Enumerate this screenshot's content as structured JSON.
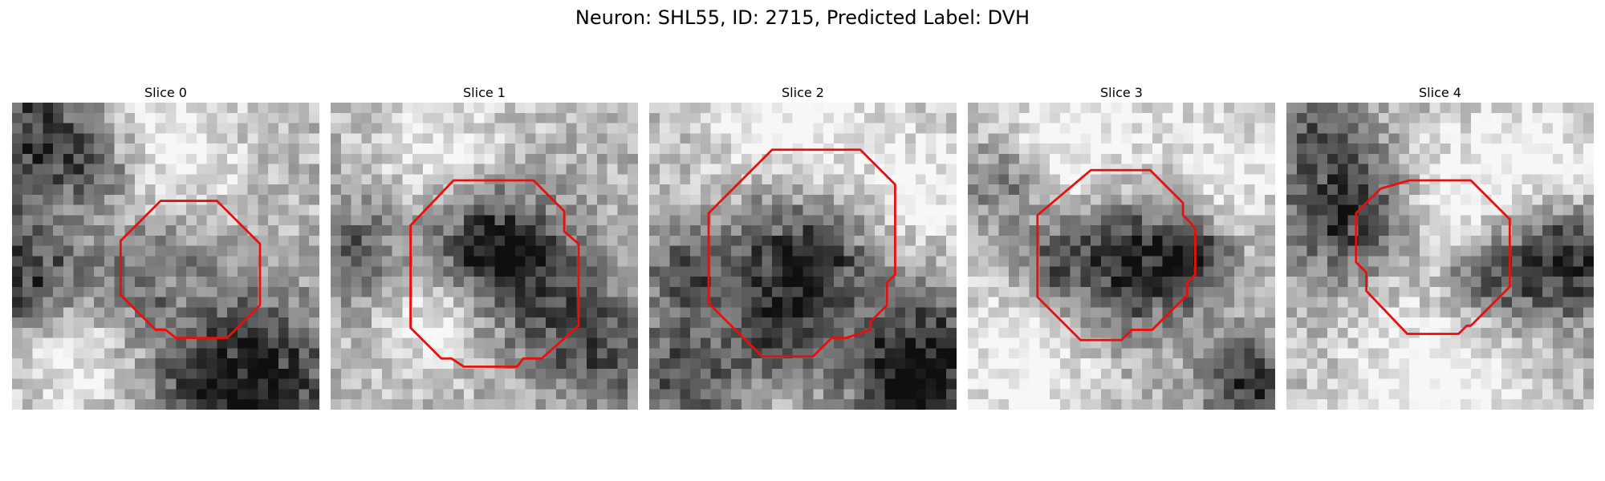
{
  "figure": {
    "title": "Neuron: SHL55, ID: 2715, Predicted Label: DVH"
  },
  "slices": [
    {
      "label": "Slice 0",
      "seed": 11,
      "center_dark": false
    },
    {
      "label": "Slice 1",
      "seed": 23,
      "center_dark": true
    },
    {
      "label": "Slice 2",
      "seed": 37,
      "center_dark": true
    },
    {
      "label": "Slice 3",
      "seed": 41,
      "center_dark": true
    },
    {
      "label": "Slice 4",
      "seed": 53,
      "center_dark": false
    }
  ],
  "colors": {
    "outline": "#e8100e",
    "background": "#ffffff"
  }
}
